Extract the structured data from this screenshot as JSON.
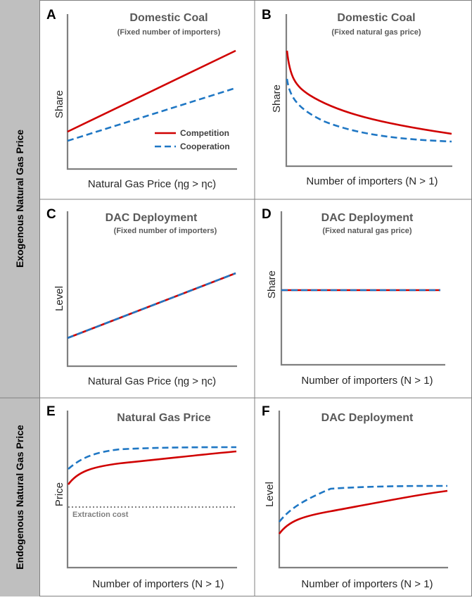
{
  "figure": {
    "row_labels": {
      "exogenous": "Exogenous Natural Gas Price",
      "endogenous": "Endogenous Natural Gas Price"
    },
    "legend": {
      "competition": "Competition",
      "cooperation": "Cooperation"
    },
    "colors": {
      "competition": "#d00000",
      "cooperation": "#1f77c4",
      "axis": "#808080",
      "side_band": "#bfbfbf"
    },
    "panels": {
      "A": {
        "letter": "A",
        "title": "Domestic Coal",
        "subtitle": "(Fixed number of importers)",
        "ylabel": "Share",
        "xlabel": "Natural Gas Price (ηg > ηc)"
      },
      "B": {
        "letter": "B",
        "title": "Domestic Coal",
        "subtitle": "(Fixed natural gas price)",
        "ylabel": "Share",
        "xlabel": "Number of importers (N > 1)"
      },
      "C": {
        "letter": "C",
        "title": "DAC Deployment",
        "subtitle": "(Fixed number of importers)",
        "ylabel": "Level",
        "xlabel": "Natural Gas Price (ηg > ηc)"
      },
      "D": {
        "letter": "D",
        "title": "DAC Deployment",
        "subtitle": "(Fixed natural gas price)",
        "ylabel": "Share",
        "xlabel": "Number of importers (N > 1)"
      },
      "E": {
        "letter": "E",
        "title": "Natural Gas Price",
        "ylabel": "Price",
        "xlabel": "Number of importers (N > 1)",
        "note": "Extraction cost"
      },
      "F": {
        "letter": "F",
        "title": "DAC Deployment",
        "ylabel": "Level",
        "xlabel": "Number of importers (N > 1)"
      }
    }
  }
}
